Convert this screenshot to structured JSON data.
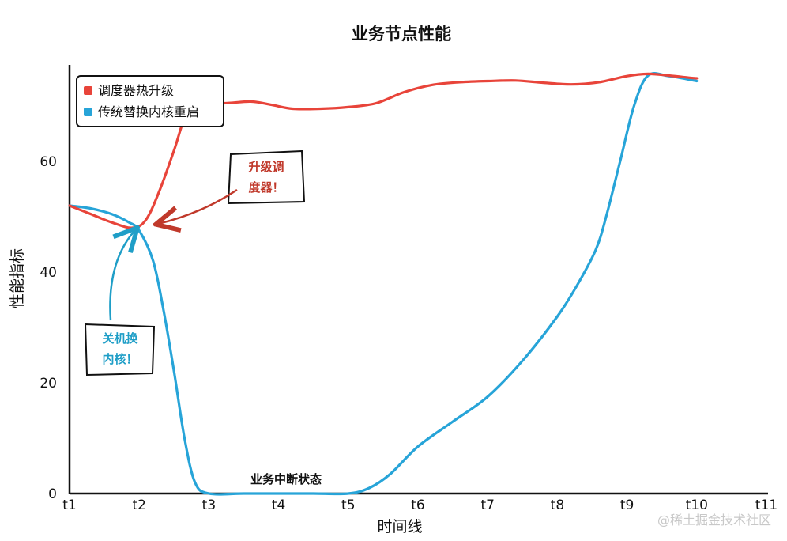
{
  "chart_data": {
    "type": "line",
    "title": "业务节点性能",
    "xlabel": "时间线",
    "ylabel": "性能指标",
    "categories": [
      "t1",
      "t2",
      "t3",
      "t4",
      "t5",
      "t6",
      "t7",
      "t8",
      "t9",
      "t10",
      "t11"
    ],
    "yticks": [
      0,
      20,
      40,
      60
    ],
    "ylim": [
      0,
      76
    ],
    "legend_position": "top-left",
    "grid": false,
    "series": [
      {
        "name": "调度器热升级",
        "color": "#e8443a",
        "points": [
          [
            0,
            52
          ],
          [
            0.3,
            50.5
          ],
          [
            0.6,
            49
          ],
          [
            0.9,
            48
          ],
          [
            1.1,
            49.5
          ],
          [
            1.3,
            55
          ],
          [
            1.5,
            62
          ],
          [
            1.7,
            69.5
          ],
          [
            1.9,
            71
          ],
          [
            2.2,
            70.5
          ],
          [
            2.6,
            70.8
          ],
          [
            2.9,
            70.2
          ],
          [
            3.2,
            69.5
          ],
          [
            3.6,
            69.5
          ],
          [
            4.0,
            69.8
          ],
          [
            4.4,
            70.5
          ],
          [
            4.8,
            72.5
          ],
          [
            5.2,
            73.8
          ],
          [
            5.6,
            74.3
          ],
          [
            6.0,
            74.5
          ],
          [
            6.4,
            74.6
          ],
          [
            6.8,
            74.2
          ],
          [
            7.2,
            73.9
          ],
          [
            7.6,
            74.3
          ],
          [
            8.0,
            75.4
          ],
          [
            8.3,
            75.8
          ],
          [
            8.6,
            75.5
          ],
          [
            8.9,
            75.1
          ],
          [
            9.0,
            75.0
          ]
        ]
      },
      {
        "name": "传统替换内核重启",
        "color": "#27a4d8",
        "points": [
          [
            0,
            52
          ],
          [
            0.3,
            51.5
          ],
          [
            0.6,
            50.5
          ],
          [
            0.85,
            49
          ],
          [
            1.0,
            47.5
          ],
          [
            1.2,
            42
          ],
          [
            1.35,
            33
          ],
          [
            1.5,
            22
          ],
          [
            1.65,
            10
          ],
          [
            1.8,
            2
          ],
          [
            2.0,
            0
          ],
          [
            2.5,
            0
          ],
          [
            3.0,
            0
          ],
          [
            3.5,
            0
          ],
          [
            4.0,
            0
          ],
          [
            4.3,
            1
          ],
          [
            4.6,
            3.5
          ],
          [
            5.0,
            8.5
          ],
          [
            5.5,
            13
          ],
          [
            6.0,
            17.5
          ],
          [
            6.5,
            24
          ],
          [
            7.0,
            32
          ],
          [
            7.3,
            38
          ],
          [
            7.55,
            44
          ],
          [
            7.7,
            50
          ],
          [
            7.9,
            60
          ],
          [
            8.1,
            70
          ],
          [
            8.3,
            75.5
          ],
          [
            8.6,
            75.4
          ],
          [
            9.0,
            74.5
          ]
        ]
      }
    ],
    "annotations": [
      {
        "text": "升级调\n度器！",
        "color": "#c0392b",
        "target": [
          1.3,
          48
        ]
      },
      {
        "text": "关机换\n内核！",
        "color": "#1f9ec7",
        "target": [
          1.0,
          47.5
        ]
      },
      {
        "text": "业务中断状态",
        "color": "#111111",
        "target": [
          3.5,
          0
        ]
      }
    ],
    "watermark": "@稀土掘金技术社区"
  }
}
